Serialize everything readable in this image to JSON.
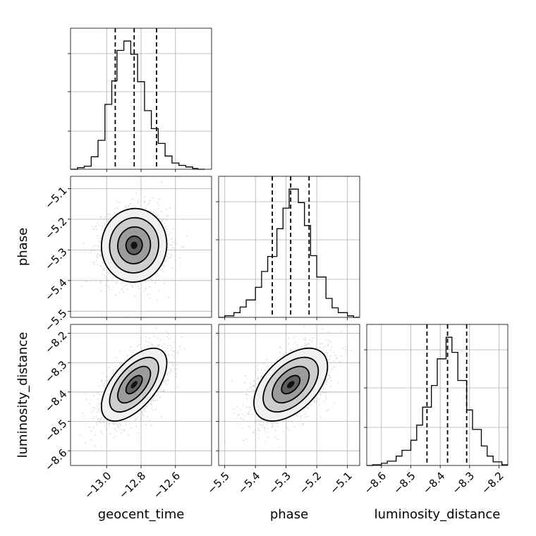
{
  "chart_data": {
    "type": "corner",
    "parameters": [
      "geocent_time",
      "phase",
      "luminosity_distance"
    ],
    "axis_labels": {
      "geocent_time": "geocent_time",
      "phase": "phase",
      "luminosity_distance": "luminosity_distance"
    },
    "ranges": {
      "geocent_time": [
        -13.21,
        -12.39
      ],
      "phase": [
        -5.52,
        -5.06
      ],
      "luminosity_distance": [
        -8.65,
        -8.17
      ]
    },
    "ticks": {
      "geocent_time": [
        -13.0,
        -12.8,
        -12.6
      ],
      "phase": [
        -5.5,
        -5.4,
        -5.3,
        -5.2,
        -5.1
      ],
      "luminosity_distance": [
        -8.6,
        -8.5,
        -8.4,
        -8.3,
        -8.2
      ]
    },
    "tick_labels": {
      "geocent_time": [
        "−13.0",
        "−12.8",
        "−12.6"
      ],
      "phase": [
        "−5.5",
        "−5.4",
        "−5.3",
        "−5.2",
        "−5.1"
      ],
      "luminosity_distance": [
        "−8.6",
        "−8.5",
        "−8.4",
        "−8.3",
        "−8.2"
      ]
    },
    "quantiles": {
      "geocent_time": [
        -12.95,
        -12.84,
        -12.71
      ],
      "phase": [
        -5.345,
        -5.285,
        -5.225
      ],
      "luminosity_distance": [
        -8.445,
        -8.375,
        -8.31
      ]
    },
    "histograms": {
      "geocent_time": {
        "edges": [
          -13.21,
          -13.17,
          -13.13,
          -13.09,
          -13.05,
          -13.01,
          -12.97,
          -12.94,
          -12.9,
          -12.86,
          -12.82,
          -12.78,
          -12.74,
          -12.7,
          -12.66,
          -12.62,
          -12.58,
          -12.54,
          -12.5,
          -12.47,
          -12.43
        ],
        "counts": [
          0,
          2,
          4,
          16,
          37,
          83,
          113,
          152,
          164,
          147,
          112,
          75,
          52,
          33,
          17,
          8,
          5,
          3,
          1,
          0
        ]
      },
      "phase": {
        "edges": [
          -5.52,
          -5.5,
          -5.47,
          -5.45,
          -5.43,
          -5.4,
          -5.38,
          -5.36,
          -5.33,
          -5.31,
          -5.29,
          -5.26,
          -5.24,
          -5.22,
          -5.2,
          -5.17,
          -5.15,
          -5.13,
          -5.1,
          -5.08,
          -5.06
        ],
        "counts": [
          0,
          2,
          6,
          13,
          22,
          38,
          58,
          77,
          112,
          138,
          162,
          145,
          116,
          78,
          51,
          24,
          12,
          6,
          2,
          0
        ]
      },
      "luminosity_distance": {
        "edges": [
          -8.65,
          -8.63,
          -8.6,
          -8.58,
          -8.55,
          -8.53,
          -8.5,
          -8.48,
          -8.46,
          -8.43,
          -8.41,
          -8.38,
          -8.36,
          -8.34,
          -8.31,
          -8.29,
          -8.26,
          -8.24,
          -8.22,
          -8.19,
          -8.17
        ],
        "counts": [
          0,
          1,
          3,
          6,
          13,
          21,
          35,
          56,
          81,
          111,
          148,
          178,
          157,
          118,
          77,
          50,
          27,
          13,
          5,
          1
        ]
      }
    },
    "density_2d": [
      {
        "x": "geocent_time",
        "y": "phase",
        "mean": [
          -12.84,
          -5.285
        ],
        "sd": [
          0.095,
          0.06
        ],
        "rho": 0.03
      },
      {
        "x": "geocent_time",
        "y": "luminosity_distance",
        "mean": [
          -12.84,
          -8.375
        ],
        "sd": [
          0.095,
          0.062
        ],
        "rho": 0.6
      },
      {
        "x": "phase",
        "y": "luminosity_distance",
        "mean": [
          -5.285,
          -8.375
        ],
        "sd": [
          0.06,
          0.062
        ],
        "rho": 0.5
      }
    ],
    "contour_levels_sigma": [
      0.5,
      1.0,
      1.5,
      2.0
    ],
    "grid": true
  }
}
